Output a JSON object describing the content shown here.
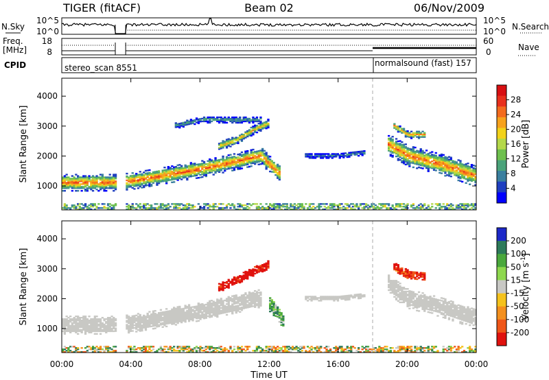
{
  "header": {
    "title": "TIGER (fitACF)",
    "beam": "Beam 02",
    "date": "06/Nov/2009"
  },
  "panels": {
    "nsky": {
      "label": "N.Sky",
      "ticks": [
        "10^5",
        "10^0"
      ],
      "right_ticks": [
        "10^5",
        "10^0"
      ],
      "right_label": "N.Search"
    },
    "freq": {
      "label": "Freq.",
      "unit": "[MHz]",
      "ticks": [
        "18",
        "8"
      ],
      "right_ticks": [
        "60",
        "0"
      ],
      "right_label": "Nave"
    },
    "cpid": {
      "label": "CPID",
      "segments": [
        {
          "name": "stereo_scan 8551",
          "start_h": 0.0
        },
        {
          "name": "normalsound (fast) 157",
          "start_h": 18.0
        }
      ]
    }
  },
  "chart_data": [
    {
      "type": "heatmap",
      "name": "power",
      "ylabel": "Slant Range [km]",
      "xlabel": "",
      "xlim": [
        0,
        24
      ],
      "ylim": [
        200,
        4600
      ],
      "yticks": [
        1000,
        2000,
        3000,
        4000
      ],
      "colorbar": {
        "label": "Power [dB]",
        "ticks": [
          4,
          8,
          12,
          16,
          20,
          24,
          28
        ],
        "range": [
          0,
          32
        ],
        "colors": [
          "#0000ff",
          "#1f3fc0",
          "#3a7f9f",
          "#4aa37a",
          "#6ec04e",
          "#b4d84a",
          "#f2d21a",
          "#f7a21d",
          "#f36b1e",
          "#e8301c",
          "#d80f12"
        ]
      },
      "echo_bands": [
        {
          "name": "main band",
          "points": [
            [
              0,
              1100
            ],
            [
              3,
              1100
            ],
            [
              4,
              1150
            ],
            [
              6,
              1350
            ],
            [
              8,
              1550
            ],
            [
              10,
              1800
            ],
            [
              11.5,
              2000
            ],
            [
              12,
              1700
            ],
            [
              12.6,
              1400
            ]
          ],
          "width": 400,
          "peak_db": 26
        },
        {
          "name": "upper band",
          "points": [
            [
              9,
              2300
            ],
            [
              10,
              2500
            ],
            [
              11.2,
              2900
            ],
            [
              12,
              3100
            ]
          ],
          "width": 200,
          "peak_db": 22
        },
        {
          "name": "far range",
          "points": [
            [
              6.5,
              3000
            ],
            [
              8,
              3200
            ],
            [
              10,
              3200
            ],
            [
              11.5,
              3200
            ]
          ],
          "width": 150,
          "peak_db": 10
        },
        {
          "name": "band 16h",
          "points": [
            [
              14,
              2000
            ],
            [
              16,
              2000
            ],
            [
              17.5,
              2100
            ]
          ],
          "width": 120,
          "peak_db": 8
        },
        {
          "name": "evening band",
          "points": [
            [
              18.8,
              2400
            ],
            [
              20,
              2000
            ],
            [
              22,
              1700
            ],
            [
              24,
              1300
            ]
          ],
          "width": 500,
          "peak_db": 26
        },
        {
          "name": "evening upper",
          "points": [
            [
              19.2,
              3000
            ],
            [
              20,
              2700
            ],
            [
              21,
              2700
            ]
          ],
          "width": 180,
          "peak_db": 24
        }
      ],
      "data_gaps": [
        [
          3.1,
          3.7
        ]
      ]
    },
    {
      "type": "heatmap",
      "name": "velocity",
      "ylabel": "Slant Range [km]",
      "xlabel": "Time UT",
      "xlim": [
        0,
        24
      ],
      "ylim": [
        200,
        4600
      ],
      "yticks": [
        1000,
        2000,
        3000,
        4000
      ],
      "xticks": [
        "00:00",
        "04:00",
        "08:00",
        "12:00",
        "16:00",
        "20:00",
        "00:00"
      ],
      "colorbar": {
        "label": "Velocity [m s^-1]",
        "ticks": [
          200,
          100,
          50,
          15,
          -15,
          -50,
          -100,
          -200
        ],
        "colors": [
          "#1c28c8",
          "#2d7a5a",
          "#4aa83c",
          "#8ed84e",
          "#c8c8c4",
          "#f5c21c",
          "#f4901e",
          "#ef5618",
          "#e0120e"
        ]
      },
      "echo_bands": [
        {
          "name": "main band",
          "points": [
            [
              0,
              1100
            ],
            [
              3,
              1100
            ],
            [
              4,
              1150
            ],
            [
              6,
              1350
            ],
            [
              8,
              1550
            ],
            [
              10,
              1800
            ],
            [
              11.5,
              2000
            ]
          ],
          "width": 420,
          "velocity": 0
        },
        {
          "name": "upper band",
          "points": [
            [
              9,
              2350
            ],
            [
              10,
              2600
            ],
            [
              11.2,
              2950
            ],
            [
              12,
              3150
            ]
          ],
          "width": 220,
          "velocity": -200
        },
        {
          "name": "midnight patch",
          "points": [
            [
              12.0,
              1800
            ],
            [
              12.5,
              1500
            ],
            [
              12.8,
              1200
            ]
          ],
          "width": 350,
          "velocity": 60
        },
        {
          "name": "band 16h",
          "points": [
            [
              14,
              2000
            ],
            [
              16,
              2000
            ],
            [
              17.5,
              2100
            ]
          ],
          "width": 120,
          "velocity": 0
        },
        {
          "name": "evening band",
          "points": [
            [
              18.8,
              2500
            ],
            [
              20,
              2000
            ],
            [
              22,
              1700
            ],
            [
              24,
              1300
            ]
          ],
          "width": 480,
          "velocity": 0
        },
        {
          "name": "evening upper",
          "points": [
            [
              19.2,
              3050
            ],
            [
              20,
              2800
            ],
            [
              21,
              2750
            ]
          ],
          "width": 200,
          "velocity": -150
        }
      ],
      "data_gaps": [
        [
          3.1,
          3.7
        ]
      ]
    }
  ]
}
